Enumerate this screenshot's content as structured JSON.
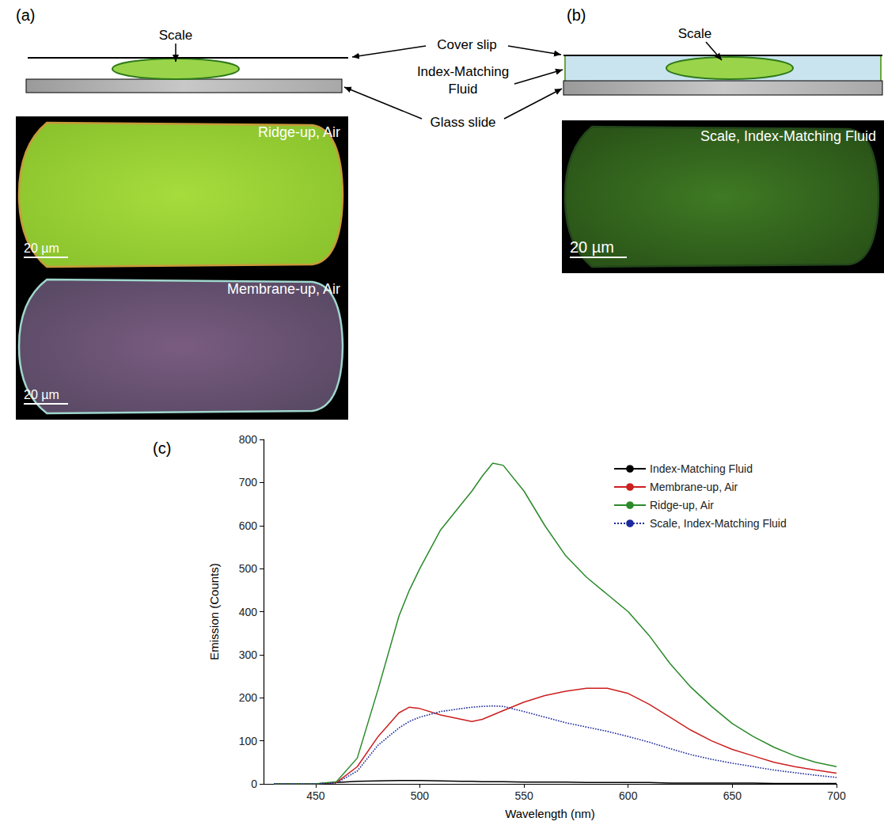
{
  "figure": {
    "panel_a": {
      "label": "(a)",
      "scale": "Scale",
      "images": [
        {
          "label": "Ridge-up, Air",
          "scale_bar": "20 µm"
        },
        {
          "label": "Membrane-up, Air",
          "scale_bar": "20 µm"
        }
      ]
    },
    "callouts": {
      "cover_slip": "Cover slip",
      "fluid": "Index-Matching Fluid",
      "glass_slide": "Glass slide"
    },
    "panel_b": {
      "label": "(b)",
      "scale": "Scale",
      "images": [
        {
          "label": "Scale, Index-Matching Fluid",
          "scale_bar": "20 µm"
        }
      ]
    }
  },
  "chart_data": {
    "type": "line",
    "panel_label": "(c)",
    "xlabel": "Wavelength (nm)",
    "ylabel": "Emission (Counts)",
    "x": [
      430,
      440,
      450,
      460,
      470,
      480,
      490,
      495,
      500,
      510,
      520,
      525,
      530,
      535,
      540,
      550,
      560,
      570,
      580,
      590,
      600,
      610,
      620,
      630,
      640,
      650,
      660,
      670,
      680,
      690,
      700
    ],
    "series": [
      {
        "name": "Index-Matching Fluid",
        "color": "#000000",
        "line_style": "solid",
        "values": [
          0,
          0,
          0,
          3,
          6,
          7,
          8,
          8,
          8,
          7,
          6,
          6,
          5,
          5,
          5,
          4,
          4,
          4,
          3,
          3,
          3,
          3,
          2,
          2,
          2,
          2,
          2,
          1,
          1,
          1,
          1
        ]
      },
      {
        "name": "Membrane-up, Air",
        "color": "#cc1f1f",
        "line_style": "solid",
        "values": [
          0,
          0,
          0,
          3,
          40,
          110,
          165,
          178,
          175,
          160,
          150,
          145,
          150,
          160,
          170,
          190,
          205,
          215,
          222,
          222,
          210,
          185,
          155,
          125,
          100,
          80,
          65,
          50,
          40,
          32,
          25
        ]
      },
      {
        "name": "Ridge-up, Air",
        "color": "#2a8a2a",
        "line_style": "solid",
        "values": [
          0,
          0,
          0,
          5,
          60,
          220,
          390,
          450,
          500,
          590,
          650,
          680,
          715,
          745,
          740,
          680,
          600,
          530,
          480,
          440,
          400,
          345,
          280,
          225,
          180,
          140,
          110,
          85,
          65,
          50,
          40
        ]
      },
      {
        "name": "Scale, Index-Matching Fluid",
        "color": "#1c2a9c",
        "line_style": "dotted",
        "values": [
          0,
          0,
          0,
          2,
          30,
          90,
          130,
          145,
          155,
          168,
          175,
          178,
          180,
          181,
          180,
          168,
          155,
          142,
          132,
          122,
          110,
          97,
          82,
          68,
          57,
          48,
          40,
          32,
          26,
          20,
          15
        ]
      }
    ],
    "xlim": [
      425,
      700
    ],
    "xticks": [
      450,
      500,
      550,
      600,
      650,
      700
    ],
    "ylim": [
      0,
      800
    ],
    "yticks": [
      0,
      100,
      200,
      300,
      400,
      500,
      600,
      700,
      800
    ],
    "legend": "upper right",
    "grid": false
  }
}
